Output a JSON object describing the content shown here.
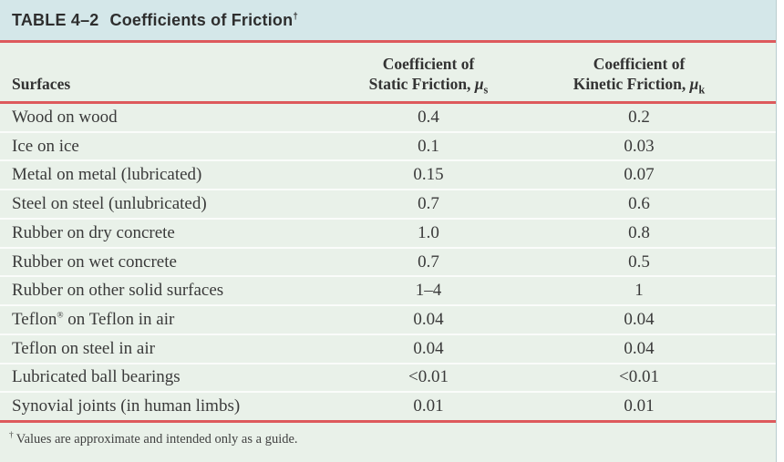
{
  "title": {
    "prefix": "TABLE 4–2",
    "text": "Coefficients of Friction",
    "dagger": "†"
  },
  "columns": {
    "surfaces": "Surfaces",
    "static": {
      "line1": "Coefficient of",
      "line2": "Static Friction, ",
      "symbol": "μ",
      "subscript": "s"
    },
    "kinetic": {
      "line1": "Coefficient of",
      "line2": "Kinetic Friction, ",
      "symbol": "μ",
      "subscript": "k"
    }
  },
  "table": {
    "rows": [
      {
        "surface": "Wood on wood",
        "static": "0.4",
        "kinetic": "0.2"
      },
      {
        "surface": "Ice on ice",
        "static": "0.1",
        "kinetic": "0.03"
      },
      {
        "surface": "Metal on metal (lubricated)",
        "static": "0.15",
        "kinetic": "0.07"
      },
      {
        "surface": "Steel on steel (unlubricated)",
        "static": "0.7",
        "kinetic": "0.6"
      },
      {
        "surface": "Rubber on dry concrete",
        "static": "1.0",
        "kinetic": "0.8"
      },
      {
        "surface": "Rubber on wet concrete",
        "static": "0.7",
        "kinetic": "0.5"
      },
      {
        "surface": "Rubber on other solid surfaces",
        "static": "1–4",
        "kinetic": "1"
      },
      {
        "surface": "Teflon® on Teflon in air",
        "static": "0.04",
        "kinetic": "0.04"
      },
      {
        "surface": "Teflon on steel in air",
        "static": "0.04",
        "kinetic": "0.04"
      },
      {
        "surface": "Lubricated ball bearings",
        "static": "<0.01",
        "kinetic": "<0.01"
      },
      {
        "surface": "Synovial joints (in human limbs)",
        "static": "0.01",
        "kinetic": "0.01"
      }
    ]
  },
  "footnote": {
    "dagger": "†",
    "text": "Values are approximate and intended only as a guide."
  },
  "colors": {
    "title_bar_background": "#d4e7e9",
    "table_background": "#e9f1e9",
    "rule_red": "#dd5a5c",
    "text": "#3a3a3a"
  }
}
